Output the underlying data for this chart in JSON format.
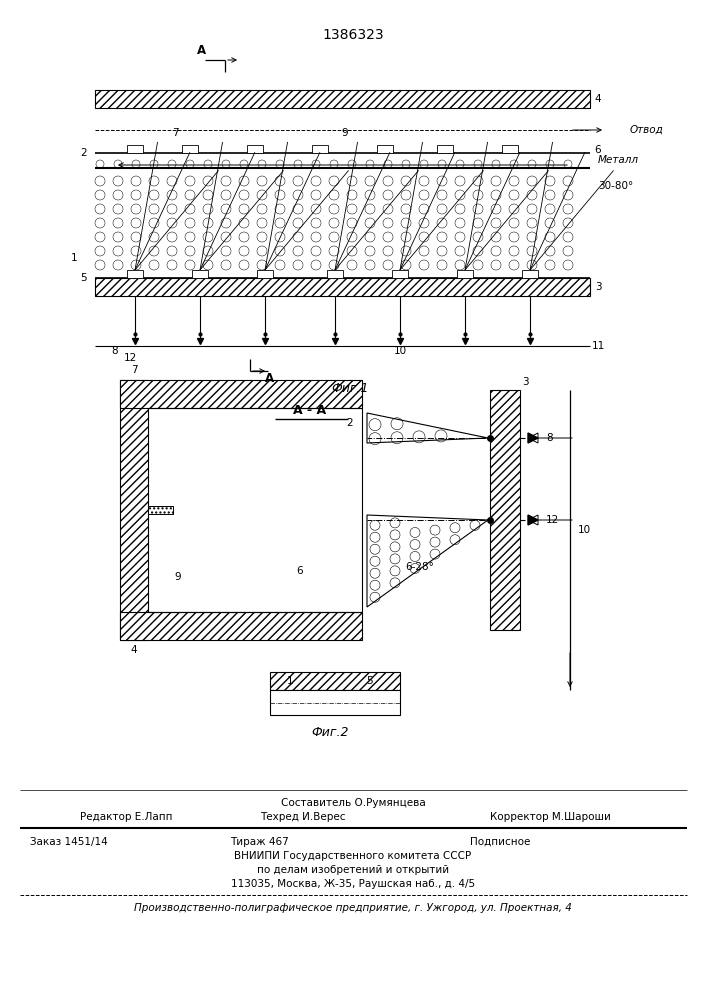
{
  "patent_number": "1386323",
  "bg_color": "#ffffff",
  "line_color": "#000000",
  "fig1_label": "Фиг.1",
  "fig2_label": "Фиг.2",
  "aa_label": "А - А",
  "arrow_label_A": "А",
  "otv_label": "Отвод",
  "metall_label": "Металл",
  "angle_label1": "30-80°",
  "angle_label2": "6-28°",
  "footer_line1": "Составитель О.Румянцева",
  "footer_line2_left": "Редактор Е.Лапп",
  "footer_line2_mid": "Техред И.Верес",
  "footer_line2_right": "Корректор М.Шароши",
  "footer_line3_left": "Заказ 1451/14",
  "footer_line3_mid": "Тираж 467",
  "footer_line3_right": "Подписное",
  "footer_line4": "ВНИИПИ Государственного комитета СССР",
  "footer_line5": "по делам изобретений и открытий",
  "footer_line6": "113035, Москва, Ж-35, Раушская наб., д. 4/5",
  "footer_line7": "Производственно-полиграфическое предприятие, г. Ужгород, ул. Проектная, 4"
}
